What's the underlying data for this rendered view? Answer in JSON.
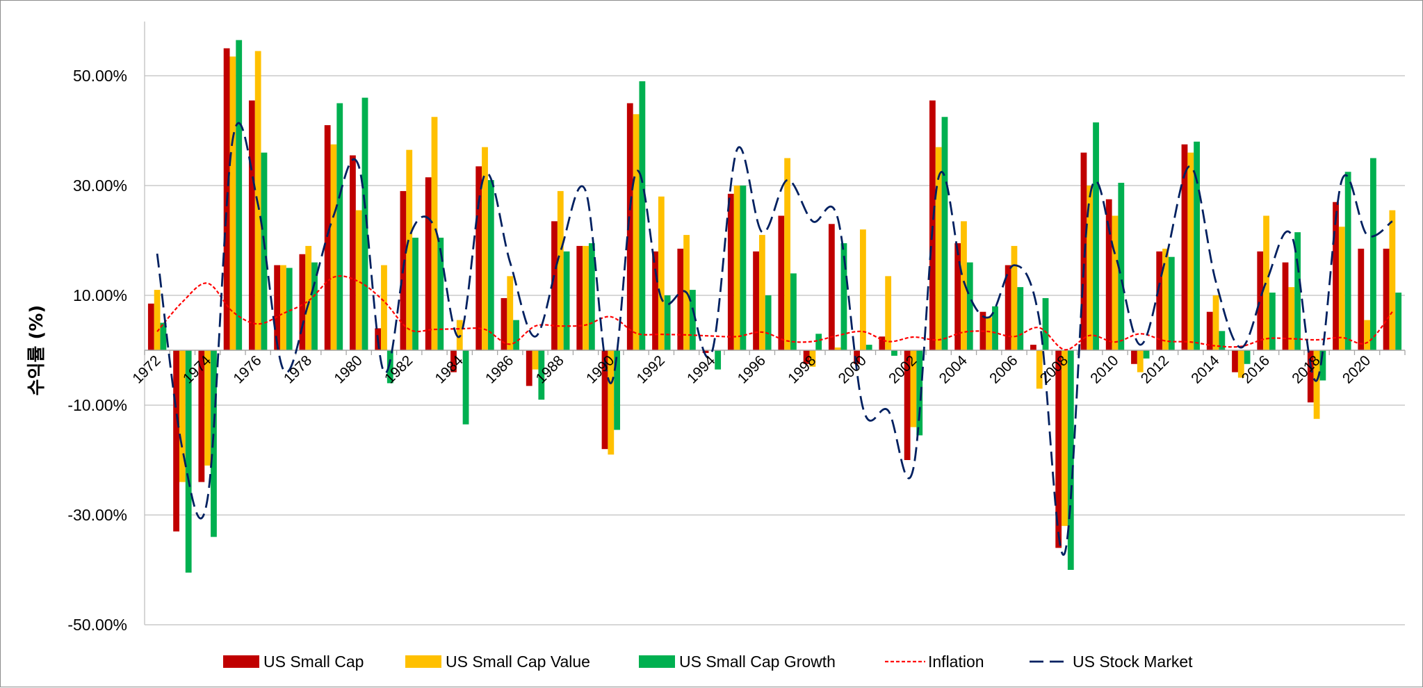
{
  "chart_data": {
    "type": "bar",
    "title": "",
    "xlabel": "",
    "ylabel": "수익률 (%)",
    "ylim": [
      -50,
      60
    ],
    "yticks": [
      -50,
      -30,
      -10,
      10,
      30,
      50
    ],
    "ytick_labels": [
      "-50.00%",
      "-30.00%",
      "-10.00%",
      "10.00%",
      "30.00%",
      "50.00%"
    ],
    "x_label_years": [
      "1972",
      "1974",
      "1976",
      "1978",
      "1980",
      "1982",
      "1984",
      "1986",
      "1988",
      "1990",
      "1992",
      "1994",
      "1996",
      "1998",
      "2000",
      "2002",
      "2004",
      "2006",
      "2008",
      "2010",
      "2012",
      "2014",
      "2016",
      "2018",
      "2020"
    ],
    "categories": [
      "1972",
      "1973",
      "1974",
      "1975",
      "1976",
      "1977",
      "1978",
      "1979",
      "1980",
      "1981",
      "1982",
      "1983",
      "1984",
      "1985",
      "1986",
      "1987",
      "1988",
      "1989",
      "1990",
      "1991",
      "1992",
      "1993",
      "1994",
      "1995",
      "1996",
      "1997",
      "1998",
      "1999",
      "2000",
      "2001",
      "2002",
      "2003",
      "2004",
      "2005",
      "2006",
      "2007",
      "2008",
      "2009",
      "2010",
      "2011",
      "2012",
      "2013",
      "2014",
      "2015",
      "2016",
      "2017",
      "2018",
      "2019",
      "2020",
      "2021"
    ],
    "legend_position": "bottom",
    "grid": true,
    "series": [
      {
        "name": "US Small Cap",
        "type": "bar",
        "color": "#c00000",
        "values": [
          8.5,
          -33.0,
          -24.0,
          55.0,
          45.5,
          15.5,
          17.5,
          41.0,
          35.5,
          4.0,
          29.0,
          31.5,
          -4.0,
          33.5,
          9.5,
          -6.5,
          23.5,
          19.0,
          -18.0,
          45.0,
          18.0,
          18.5,
          -0.5,
          28.5,
          18.0,
          24.5,
          -2.5,
          23.0,
          -2.5,
          2.5,
          -20.0,
          45.5,
          19.5,
          7.0,
          15.5,
          1.0,
          -36.0,
          36.0,
          27.5,
          -2.5,
          18.0,
          37.5,
          7.0,
          -4.0,
          18.0,
          16.0,
          -9.5,
          27.0,
          18.5,
          18.5
        ]
      },
      {
        "name": "US Small Cap Value",
        "type": "bar",
        "color": "#ffc000",
        "values": [
          11.0,
          -24.0,
          -21.0,
          53.5,
          54.5,
          15.5,
          19.0,
          37.5,
          25.5,
          15.5,
          36.5,
          42.5,
          5.5,
          37.0,
          13.5,
          -3.5,
          29.0,
          19.0,
          -19.0,
          43.0,
          28.0,
          21.0,
          0.0,
          30.0,
          21.0,
          35.0,
          -3.0,
          0.5,
          22.0,
          13.5,
          -14.0,
          37.0,
          23.5,
          6.0,
          19.0,
          -7.0,
          -32.0,
          30.0,
          24.5,
          -4.0,
          18.5,
          36.0,
          10.0,
          -5.0,
          24.5,
          11.5,
          -12.5,
          22.5,
          5.5,
          25.5
        ]
      },
      {
        "name": "US Small Cap Growth",
        "type": "bar",
        "color": "#00b050",
        "values": [
          5.0,
          -40.5,
          -34.0,
          56.5,
          36.0,
          15.0,
          16.0,
          45.0,
          46.0,
          -6.0,
          20.5,
          20.5,
          -13.5,
          31.0,
          5.5,
          -9.0,
          18.0,
          19.5,
          -14.5,
          49.0,
          10.0,
          11.0,
          -3.5,
          30.0,
          10.0,
          14.0,
          3.0,
          19.5,
          1.0,
          -1.0,
          -15.5,
          42.5,
          16.0,
          8.0,
          11.5,
          9.5,
          -40.0,
          41.5,
          30.5,
          -1.5,
          17.0,
          38.0,
          3.5,
          -2.5,
          10.5,
          21.5,
          -5.5,
          32.5,
          35.0,
          10.5
        ]
      },
      {
        "name": "Inflation",
        "type": "line",
        "style": "dotted",
        "color": "#ff0000",
        "values": [
          3.4,
          8.8,
          12.2,
          7.0,
          4.8,
          6.7,
          9.0,
          13.3,
          12.5,
          8.9,
          3.8,
          3.8,
          3.9,
          3.8,
          1.1,
          4.4,
          4.4,
          4.6,
          6.1,
          3.1,
          2.9,
          2.8,
          2.6,
          2.5,
          3.3,
          1.7,
          1.6,
          2.7,
          3.4,
          1.6,
          2.4,
          1.9,
          3.3,
          3.4,
          2.5,
          4.1,
          0.1,
          2.7,
          1.5,
          3.0,
          1.7,
          1.5,
          0.8,
          0.7,
          2.1,
          2.1,
          1.9,
          2.3,
          1.4,
          7.0
        ]
      },
      {
        "name": "US Stock Market",
        "type": "line",
        "style": "dashed",
        "color": "#002060",
        "values": [
          17.6,
          -18.0,
          -27.0,
          38.5,
          26.5,
          -3.5,
          8.5,
          24.5,
          33.5,
          -4.0,
          20.5,
          22.5,
          2.5,
          32.0,
          16.0,
          2.5,
          18.0,
          29.0,
          -6.0,
          32.5,
          9.5,
          10.5,
          -0.5,
          36.5,
          21.5,
          31.0,
          23.5,
          24.0,
          -10.5,
          -11.0,
          -21.5,
          31.5,
          12.5,
          6.0,
          15.5,
          5.5,
          -37.0,
          28.0,
          17.5,
          1.0,
          16.5,
          33.5,
          12.5,
          0.5,
          12.5,
          21.0,
          -5.5,
          31.0,
          21.0,
          23.5
        ]
      }
    ]
  }
}
